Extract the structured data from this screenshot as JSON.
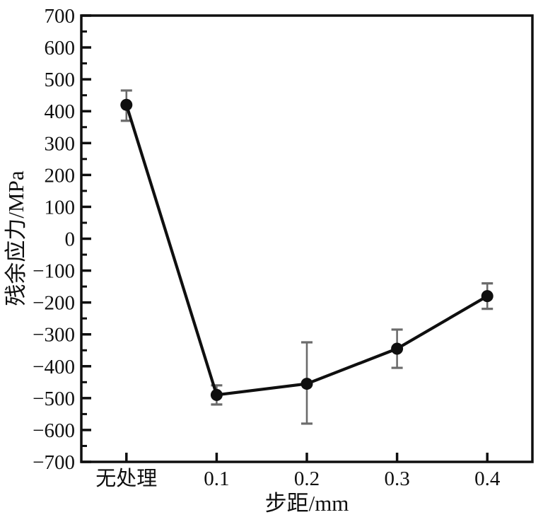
{
  "figure": {
    "background": "#ffffff"
  },
  "chart_data": {
    "type": "line",
    "title": "",
    "xlabel": "步距/mm",
    "ylabel": "残余应力/MPa",
    "categories": [
      "无处理",
      "0.1",
      "0.2",
      "0.3",
      "0.4"
    ],
    "series": [
      {
        "name": "残余应力",
        "values": [
          420,
          -490,
          -455,
          -345,
          -180
        ],
        "error_upper": [
          465,
          -460,
          -325,
          -285,
          -140
        ],
        "error_lower": [
          370,
          -520,
          -580,
          -405,
          -220
        ]
      }
    ],
    "ylim": [
      -700,
      700
    ],
    "y_major_step": 100,
    "y_minor_step": 50,
    "y_tick_labels": [
      "700",
      "600",
      "500",
      "400",
      "300",
      "200",
      "100",
      "0",
      "−100",
      "−200",
      "−300",
      "−400",
      "−500",
      "−600",
      "−700"
    ],
    "grid": false,
    "legend_position": "none",
    "marker": "circle",
    "axis_color": "#0f0f0f",
    "line_color": "#0f0f0f",
    "marker_color": "#0f0f0f",
    "error_bar_color": "#6b6b6b",
    "background": "#ffffff"
  }
}
